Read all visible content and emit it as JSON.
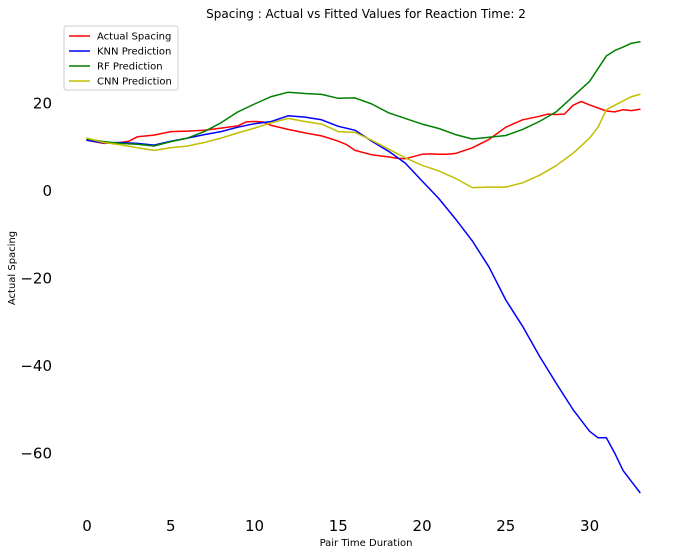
{
  "chart_data": {
    "type": "line",
    "title": "Spacing : Actual vs Fitted Values for Reaction Time: 2",
    "xlabel": "Pair Time Duration",
    "ylabel": "Actual Spacing",
    "xlim": [
      -4,
      34.5
    ],
    "ylim": [
      -73,
      39
    ],
    "xticks": [
      0,
      5,
      10,
      15,
      20,
      25,
      30
    ],
    "yticks": [
      -60,
      -40,
      -20,
      0,
      20
    ],
    "grid": false,
    "legend_position": "top-left",
    "series": [
      {
        "name": "Actual Spacing",
        "color": "#ff0000",
        "x": [
          0,
          1,
          2,
          2.5,
          3,
          4,
          5,
          6,
          7,
          8,
          9,
          9.5,
          10,
          10.5,
          11,
          12,
          13,
          14,
          15,
          15.5,
          16,
          17,
          18,
          18.5,
          19,
          20,
          20.5,
          21,
          21.5,
          22,
          23,
          24,
          25,
          26,
          27,
          27.5,
          28,
          28.5,
          29,
          29.5,
          30,
          31,
          31.5,
          32,
          32.5,
          33
        ],
        "y": [
          11.5,
          10.8,
          11,
          11.3,
          12.3,
          12.7,
          13.5,
          13.6,
          13.8,
          14.3,
          14.8,
          15.7,
          15.8,
          15.7,
          14.9,
          14,
          13.2,
          12.5,
          11.3,
          10.5,
          9.2,
          8.2,
          7.7,
          7.4,
          7.3,
          8.3,
          8.4,
          8.3,
          8.3,
          8.5,
          9.8,
          11.7,
          14.5,
          16.2,
          17,
          17.5,
          17.4,
          17.5,
          19.5,
          20.4,
          19.6,
          18.2,
          18,
          18.5,
          18.3,
          18.6
        ]
      },
      {
        "name": "KNN  Prediction",
        "color": "#0000ff",
        "x": [
          0,
          1,
          2,
          3,
          4,
          5,
          6,
          7,
          8,
          9,
          10,
          11,
          12,
          13,
          14,
          15,
          16,
          17,
          18,
          19,
          20,
          21,
          22,
          23,
          24,
          25,
          26,
          27,
          28,
          29,
          30,
          30.5,
          31,
          31.5,
          32,
          32.5,
          33
        ],
        "y": [
          11.5,
          10.9,
          11,
          10.8,
          10.4,
          11.3,
          12,
          12.8,
          13.5,
          14.5,
          15.3,
          15.8,
          17.1,
          16.8,
          16.2,
          14.7,
          13.8,
          11.3,
          9,
          6.3,
          2.2,
          -1.8,
          -6.5,
          -11.5,
          -17.5,
          -25,
          -31,
          -37.8,
          -44,
          -50,
          -55,
          -56.5,
          -56.5,
          -60,
          -64,
          -66.5,
          -69
        ]
      },
      {
        "name": "RF  Prediction",
        "color": "#008000",
        "x": [
          0,
          1,
          2,
          3,
          4,
          5,
          6,
          7,
          8,
          9,
          10,
          11,
          12,
          13,
          14,
          15,
          16,
          17,
          18,
          19,
          20,
          21,
          22,
          23,
          24,
          25,
          26,
          27,
          28,
          29,
          30,
          31,
          31.5,
          32,
          32.5,
          33
        ],
        "y": [
          11.8,
          11.2,
          10.8,
          10.6,
          10.2,
          11.2,
          12,
          13.5,
          15.5,
          18,
          19.8,
          21.5,
          22.5,
          22.2,
          22,
          21.1,
          21.2,
          19.8,
          17.8,
          16.5,
          15.2,
          14.2,
          12.8,
          11.8,
          12.2,
          12.6,
          14,
          15.8,
          18,
          21.5,
          25,
          30.8,
          32,
          32.8,
          33.7,
          34
        ]
      },
      {
        "name": "CNN  Prediction",
        "color": "#bfbf00",
        "x": [
          0,
          1,
          2,
          3,
          4,
          5,
          6,
          7,
          8,
          9,
          10,
          11,
          12,
          13,
          14,
          15,
          16,
          17,
          18,
          19,
          20,
          21,
          22,
          23,
          24,
          25,
          26,
          27,
          28,
          29,
          30,
          30.5,
          31,
          31.5,
          32,
          32.5,
          33
        ],
        "y": [
          12,
          11,
          10.5,
          9.8,
          9.2,
          9.8,
          10.2,
          11,
          12,
          13.2,
          14.3,
          15.5,
          16.5,
          15.8,
          15.2,
          13.5,
          13.3,
          11.5,
          9.5,
          7.5,
          5.8,
          4.5,
          2.8,
          0.7,
          0.8,
          0.8,
          1.8,
          3.5,
          5.7,
          8.5,
          12,
          14.5,
          18.5,
          19.5,
          20.5,
          21.5,
          22
        ]
      }
    ]
  }
}
